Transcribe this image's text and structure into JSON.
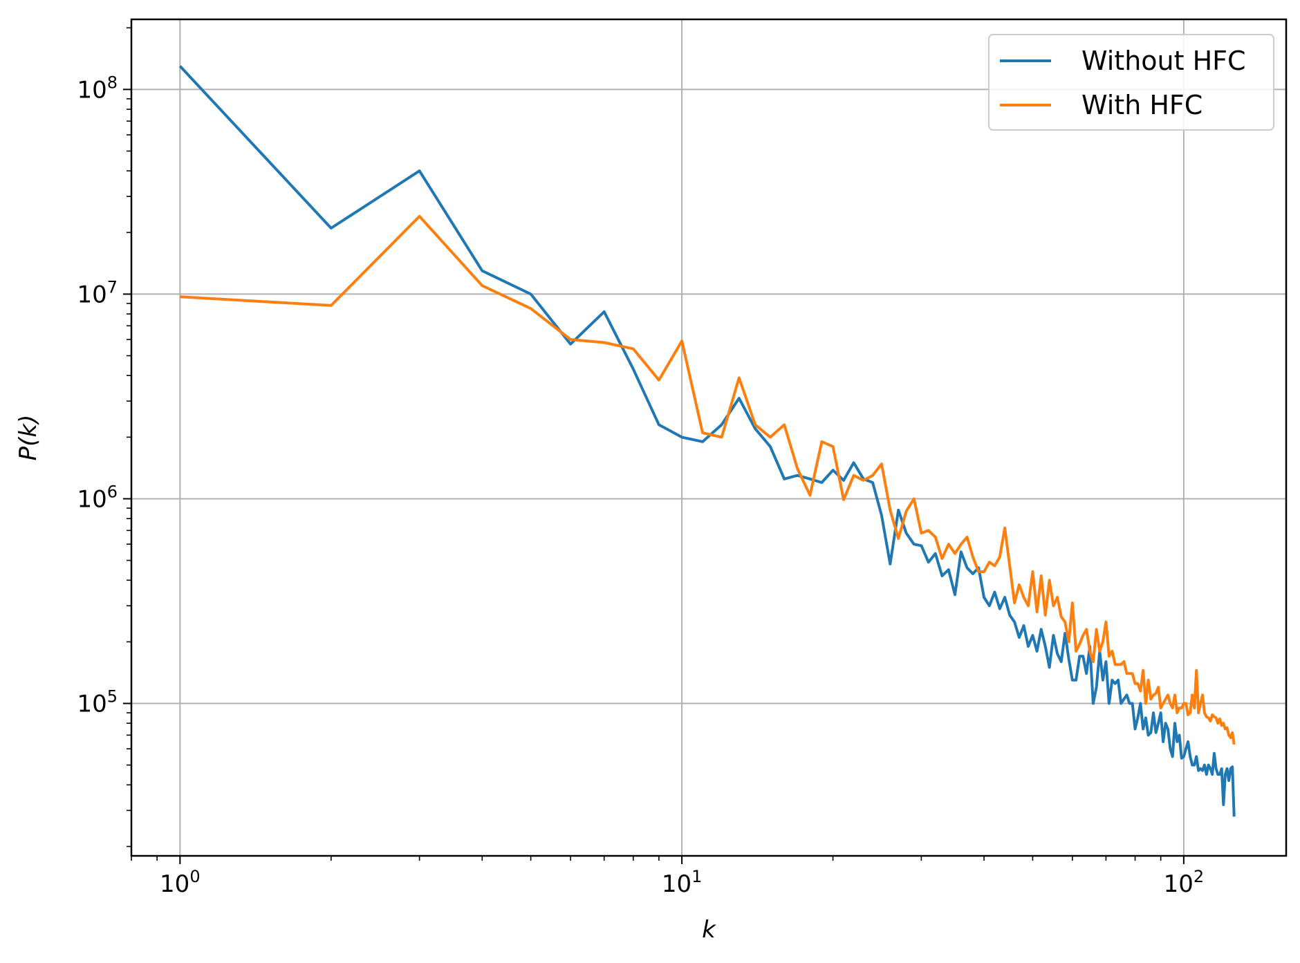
{
  "chart_data": {
    "type": "line",
    "xscale": "log",
    "yscale": "log",
    "xlabel": "k",
    "ylabel": "P(k)",
    "xlim": [
      0.8,
      160
    ],
    "ylim": [
      18000,
      220000000
    ],
    "grid": true,
    "legend_position": "top-right",
    "x_ticks": [
      {
        "base": "10",
        "exp": "0",
        "value": 1
      },
      {
        "base": "10",
        "exp": "1",
        "value": 10
      },
      {
        "base": "10",
        "exp": "2",
        "value": 100
      }
    ],
    "y_ticks": [
      {
        "base": "10",
        "exp": "5",
        "value": 100000
      },
      {
        "base": "10",
        "exp": "6",
        "value": 1000000
      },
      {
        "base": "10",
        "exp": "7",
        "value": 10000000
      },
      {
        "base": "10",
        "exp": "8",
        "value": 100000000
      }
    ],
    "series": [
      {
        "name": "Without HFC",
        "color": "#1f77b4",
        "points": [
          [
            1,
            130000000
          ],
          [
            2,
            21000000
          ],
          [
            3,
            40000000
          ],
          [
            4,
            13000000
          ],
          [
            5,
            10000000
          ],
          [
            6,
            5700000
          ],
          [
            7,
            8200000
          ],
          [
            8,
            4300000
          ],
          [
            9,
            2300000
          ],
          [
            10,
            2000000
          ],
          [
            11,
            1900000
          ],
          [
            12,
            2300000
          ],
          [
            13,
            3100000
          ],
          [
            14,
            2200000
          ],
          [
            15,
            1800000
          ],
          [
            16,
            1250000
          ],
          [
            17,
            1300000
          ],
          [
            18,
            1250000
          ],
          [
            19,
            1200000
          ],
          [
            20,
            1380000
          ],
          [
            21,
            1230000
          ],
          [
            22,
            1500000
          ],
          [
            23,
            1250000
          ],
          [
            24,
            1200000
          ],
          [
            25,
            830000
          ],
          [
            26,
            480000
          ],
          [
            27,
            880000
          ],
          [
            28,
            680000
          ],
          [
            29,
            600000
          ],
          [
            30,
            590000
          ],
          [
            31,
            490000
          ],
          [
            32,
            540000
          ],
          [
            33,
            420000
          ],
          [
            34,
            450000
          ],
          [
            35,
            340000
          ],
          [
            36,
            550000
          ],
          [
            37,
            460000
          ],
          [
            38,
            430000
          ],
          [
            39,
            460000
          ],
          [
            40,
            330000
          ],
          [
            41,
            300000
          ],
          [
            42,
            350000
          ],
          [
            43,
            290000
          ],
          [
            44,
            330000
          ],
          [
            45,
            270000
          ],
          [
            46,
            250000
          ],
          [
            47,
            210000
          ],
          [
            48,
            240000
          ],
          [
            49,
            190000
          ],
          [
            50,
            215000
          ],
          [
            51,
            180000
          ],
          [
            52,
            230000
          ],
          [
            53,
            190000
          ],
          [
            54,
            150000
          ],
          [
            55,
            215000
          ],
          [
            56,
            175000
          ],
          [
            57,
            160000
          ],
          [
            58,
            220000
          ],
          [
            59,
            165000
          ],
          [
            60,
            130000
          ],
          [
            61,
            130000
          ],
          [
            62,
            170000
          ],
          [
            63,
            170000
          ],
          [
            64,
            140000
          ],
          [
            65,
            190000
          ],
          [
            66,
            100000
          ],
          [
            67,
            120000
          ],
          [
            68,
            180000
          ],
          [
            69,
            130000
          ],
          [
            70,
            160000
          ],
          [
            71,
            100000
          ],
          [
            72,
            130000
          ],
          [
            73,
            125000
          ],
          [
            74,
            130000
          ],
          [
            75,
            100000
          ],
          [
            76,
            105000
          ],
          [
            77,
            110000
          ],
          [
            78,
            100000
          ],
          [
            79,
            100000
          ],
          [
            80,
            75000
          ],
          [
            81,
            85000
          ],
          [
            82,
            100000
          ],
          [
            83,
            75000
          ],
          [
            84,
            85000
          ],
          [
            85,
            70000
          ],
          [
            86,
            72000
          ],
          [
            87,
            90000
          ],
          [
            88,
            72000
          ],
          [
            89,
            80000
          ],
          [
            90,
            90000
          ],
          [
            91,
            65000
          ],
          [
            92,
            80000
          ],
          [
            93,
            75000
          ],
          [
            94,
            60000
          ],
          [
            95,
            55000
          ],
          [
            96,
            80000
          ],
          [
            97,
            65000
          ],
          [
            98,
            70000
          ],
          [
            99,
            54000
          ],
          [
            100,
            55000
          ],
          [
            101,
            60000
          ],
          [
            102,
            65000
          ],
          [
            103,
            55000
          ],
          [
            104,
            50000
          ],
          [
            105,
            50000
          ],
          [
            106,
            55000
          ],
          [
            107,
            47000
          ],
          [
            108,
            48000
          ],
          [
            109,
            47000
          ],
          [
            110,
            50000
          ],
          [
            111,
            45000
          ],
          [
            112,
            50000
          ],
          [
            113,
            48000
          ],
          [
            114,
            45000
          ],
          [
            115,
            57000
          ],
          [
            116,
            48000
          ],
          [
            117,
            45000
          ],
          [
            118,
            45000
          ],
          [
            119,
            48000
          ],
          [
            120,
            32000
          ],
          [
            121,
            45000
          ],
          [
            122,
            48000
          ],
          [
            123,
            42000
          ],
          [
            124,
            48000
          ],
          [
            125,
            49000
          ],
          [
            126,
            28000
          ]
        ]
      },
      {
        "name": "With HFC",
        "color": "#ff7f0e",
        "points": [
          [
            1,
            9700000
          ],
          [
            2,
            8800000
          ],
          [
            3,
            24000000
          ],
          [
            4,
            11000000
          ],
          [
            5,
            8500000
          ],
          [
            6,
            6000000
          ],
          [
            7,
            5800000
          ],
          [
            8,
            5400000
          ],
          [
            9,
            3800000
          ],
          [
            10,
            5900000
          ],
          [
            11,
            2100000
          ],
          [
            12,
            2000000
          ],
          [
            13,
            3900000
          ],
          [
            14,
            2300000
          ],
          [
            15,
            2000000
          ],
          [
            16,
            2300000
          ],
          [
            17,
            1400000
          ],
          [
            18,
            1040000
          ],
          [
            19,
            1900000
          ],
          [
            20,
            1800000
          ],
          [
            21,
            990000
          ],
          [
            22,
            1300000
          ],
          [
            23,
            1230000
          ],
          [
            24,
            1300000
          ],
          [
            25,
            1480000
          ],
          [
            26,
            880000
          ],
          [
            27,
            640000
          ],
          [
            28,
            870000
          ],
          [
            29,
            1000000
          ],
          [
            30,
            680000
          ],
          [
            31,
            700000
          ],
          [
            32,
            650000
          ],
          [
            33,
            510000
          ],
          [
            34,
            600000
          ],
          [
            35,
            540000
          ],
          [
            36,
            600000
          ],
          [
            37,
            650000
          ],
          [
            38,
            520000
          ],
          [
            39,
            440000
          ],
          [
            40,
            440000
          ],
          [
            41,
            490000
          ],
          [
            42,
            470000
          ],
          [
            43,
            520000
          ],
          [
            44,
            720000
          ],
          [
            45,
            470000
          ],
          [
            46,
            310000
          ],
          [
            47,
            380000
          ],
          [
            48,
            330000
          ],
          [
            49,
            300000
          ],
          [
            50,
            440000
          ],
          [
            51,
            280000
          ],
          [
            52,
            420000
          ],
          [
            53,
            270000
          ],
          [
            54,
            400000
          ],
          [
            55,
            300000
          ],
          [
            56,
            330000
          ],
          [
            57,
            265000
          ],
          [
            58,
            250000
          ],
          [
            59,
            200000
          ],
          [
            60,
            310000
          ],
          [
            61,
            180000
          ],
          [
            62,
            195000
          ],
          [
            63,
            215000
          ],
          [
            64,
            230000
          ],
          [
            65,
            180000
          ],
          [
            66,
            160000
          ],
          [
            67,
            230000
          ],
          [
            68,
            180000
          ],
          [
            69,
            200000
          ],
          [
            70,
            250000
          ],
          [
            71,
            170000
          ],
          [
            72,
            180000
          ],
          [
            73,
            155000
          ],
          [
            74,
            155000
          ],
          [
            75,
            155000
          ],
          [
            76,
            160000
          ],
          [
            77,
            140000
          ],
          [
            78,
            140000
          ],
          [
            79,
            140000
          ],
          [
            80,
            125000
          ],
          [
            81,
            125000
          ],
          [
            82,
            115000
          ],
          [
            83,
            145000
          ],
          [
            84,
            100000
          ],
          [
            85,
            130000
          ],
          [
            86,
            105000
          ],
          [
            87,
            110000
          ],
          [
            88,
            112000
          ],
          [
            89,
            120000
          ],
          [
            90,
            95000
          ],
          [
            91,
            100000
          ],
          [
            92,
            105000
          ],
          [
            93,
            110000
          ],
          [
            94,
            100000
          ],
          [
            95,
            95000
          ],
          [
            96,
            110000
          ],
          [
            97,
            90000
          ],
          [
            98,
            95000
          ],
          [
            99,
            95000
          ],
          [
            100,
            100000
          ],
          [
            101,
            100000
          ],
          [
            102,
            88000
          ],
          [
            103,
            90000
          ],
          [
            104,
            110000
          ],
          [
            105,
            95000
          ],
          [
            106,
            145000
          ],
          [
            107,
            90000
          ],
          [
            108,
            100000
          ],
          [
            109,
            110000
          ],
          [
            110,
            90000
          ],
          [
            111,
            86000
          ],
          [
            112,
            85000
          ],
          [
            113,
            82000
          ],
          [
            114,
            88000
          ],
          [
            115,
            86000
          ],
          [
            116,
            85000
          ],
          [
            117,
            80000
          ],
          [
            118,
            84000
          ],
          [
            119,
            78000
          ],
          [
            120,
            80000
          ],
          [
            121,
            75000
          ],
          [
            122,
            76000
          ],
          [
            123,
            70000
          ],
          [
            124,
            68000
          ],
          [
            125,
            72000
          ],
          [
            126,
            63000
          ]
        ]
      }
    ]
  }
}
